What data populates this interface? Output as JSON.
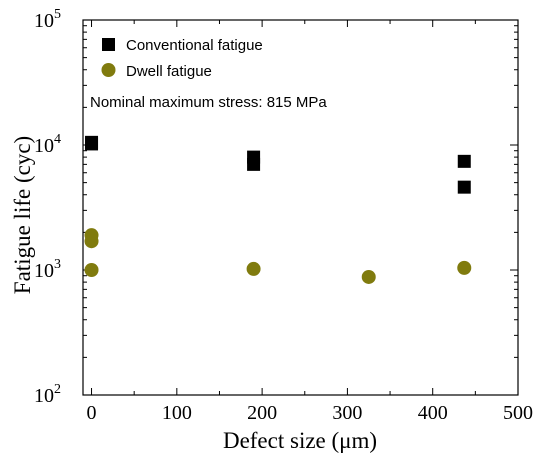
{
  "chart_data": {
    "type": "scatter",
    "xlabel": "Defect size (μm)",
    "ylabel": "Fatigue life (cyc)",
    "xlim": [
      -10,
      500
    ],
    "ylim": [
      100,
      100000
    ],
    "yscale": "log",
    "x_ticks": [
      0,
      100,
      200,
      300,
      400,
      500
    ],
    "x_tick_labels": [
      "0",
      "100",
      "200",
      "300",
      "400",
      "500"
    ],
    "y_ticks": [
      100,
      1000,
      10000,
      100000
    ],
    "y_tick_base": "10",
    "y_tick_exponents": [
      "2",
      "3",
      "4",
      "5"
    ],
    "legend_position": "top-left",
    "annotation": "Nominal maximum stress: 815 MPa",
    "series": [
      {
        "name": "Conventional fatigue",
        "marker": "square",
        "color": "#000000",
        "points": [
          [
            0,
            10500
          ],
          [
            0,
            10200
          ],
          [
            190,
            8000
          ],
          [
            190,
            7000
          ],
          [
            437,
            7400
          ],
          [
            437,
            4600
          ]
        ]
      },
      {
        "name": "Dwell fatigue",
        "marker": "circle",
        "color": "#807b0e",
        "points": [
          [
            0,
            1900
          ],
          [
            0,
            1700
          ],
          [
            0,
            1000
          ],
          [
            190,
            1020
          ],
          [
            325,
            880
          ],
          [
            437,
            1040
          ]
        ]
      }
    ]
  }
}
